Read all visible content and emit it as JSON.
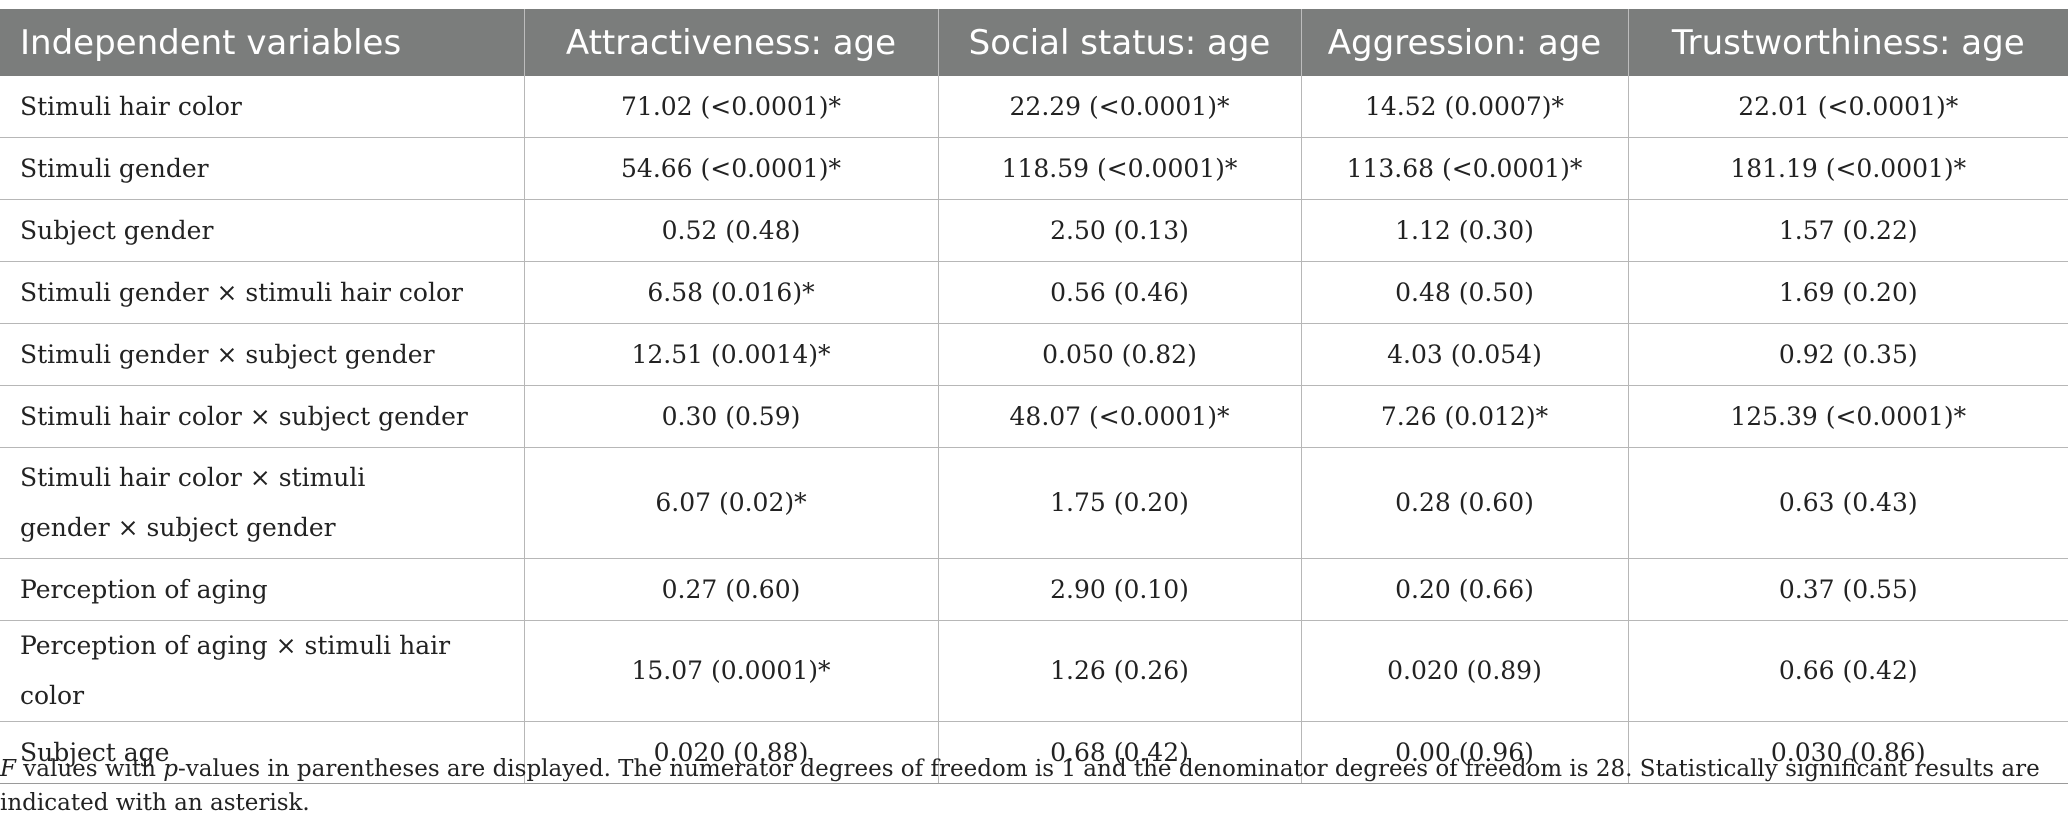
{
  "table": {
    "headers": [
      "Independent variables",
      "Attractiveness: age",
      "Social status: age",
      "Aggression: age",
      "Trustworthiness: age"
    ],
    "rows": [
      {
        "label": "Stimuli hair color",
        "values": [
          "71.02 (<0.0001)*",
          "22.29 (<0.0001)*",
          "14.52 (0.0007)*",
          "22.01 (<0.0001)*"
        ]
      },
      {
        "label": "Stimuli gender",
        "values": [
          "54.66 (<0.0001)*",
          "118.59 (<0.0001)*",
          "113.68 (<0.0001)*",
          "181.19 (<0.0001)*"
        ]
      },
      {
        "label": "Subject gender",
        "values": [
          "0.52 (0.48)",
          "2.50 (0.13)",
          "1.12 (0.30)",
          "1.57 (0.22)"
        ]
      },
      {
        "label": "Stimuli gender × stimuli hair color",
        "values": [
          "6.58 (0.016)*",
          "0.56 (0.46)",
          "0.48 (0.50)",
          "1.69 (0.20)"
        ]
      },
      {
        "label": "Stimuli gender × subject gender",
        "values": [
          "12.51 (0.0014)*",
          "0.050 (0.82)",
          "4.03 (0.054)",
          "0.92 (0.35)"
        ]
      },
      {
        "label": "Stimuli hair color × subject gender",
        "values": [
          "0.30 (0.59)",
          "48.07 (<0.0001)*",
          "7.26 (0.012)*",
          "125.39 (<0.0001)*"
        ]
      },
      {
        "label_line1": "Stimuli hair color × stimuli",
        "label_line2": "gender × subject gender",
        "values": [
          "6.07 (0.02)*",
          "1.75 (0.20)",
          "0.28 (0.60)",
          "0.63 (0.43)"
        ]
      },
      {
        "label": "Perception of aging",
        "values": [
          "0.27 (0.60)",
          "2.90 (0.10)",
          "0.20 (0.66)",
          "0.37 (0.55)"
        ]
      },
      {
        "label": "Perception of aging × stimuli hair color",
        "values": [
          "15.07 (0.0001)*",
          "1.26 (0.26)",
          "0.020 (0.89)",
          "0.66 (0.42)"
        ]
      },
      {
        "label": "Subject age",
        "values": [
          "0.020 (0.88)",
          "0.68 (0.42)",
          "0.00 (0.96)",
          "0.030 (0.86)"
        ]
      }
    ]
  },
  "footnote": {
    "f_symbol": "F",
    "part1": " values with ",
    "p_symbol": "p",
    "part2": "-values in parentheses are displayed. The numerator degrees of freedom is 1 and the denominator degrees of freedom is 28. Statistically significant results are indicated with an asterisk."
  },
  "colors": {
    "header_background": "#7b7d7c",
    "header_text": "#ffffff",
    "grid_lines": "#b7b7b7"
  }
}
